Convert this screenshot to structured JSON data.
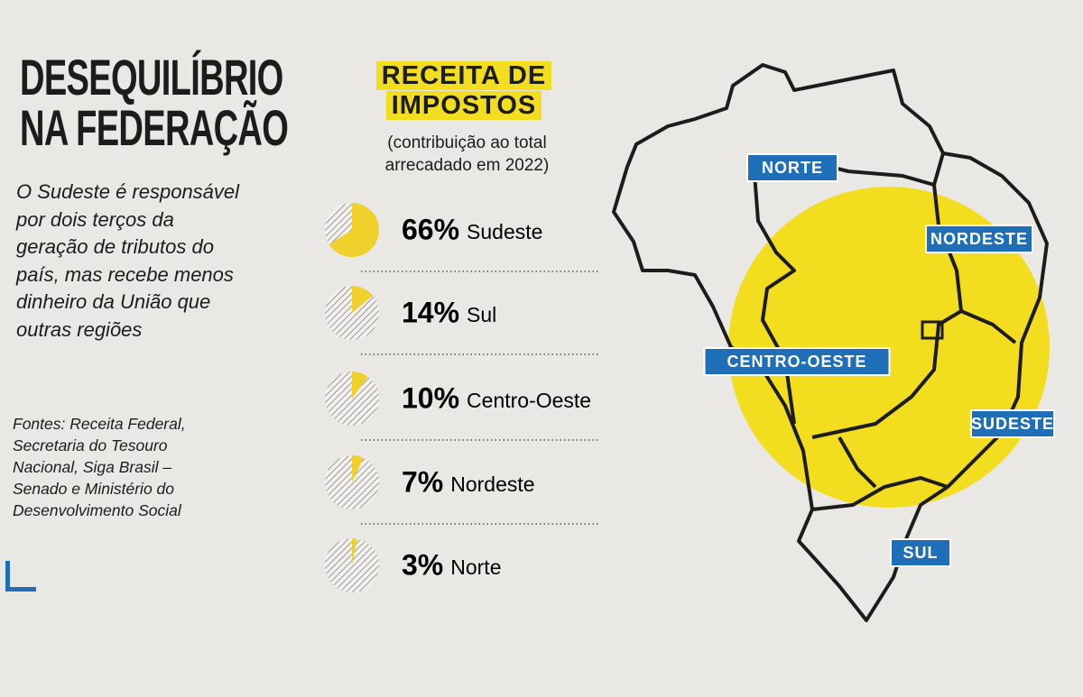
{
  "article": {
    "headline": "DESEQUILÍBRIO NA FEDERAÇÃO",
    "body": "O Sudeste é responsável por dois terços da geração de tributos do país, mas recebe menos dinheiro da União que outras regiões",
    "sources": "Fontes: Receita Federal, Secretaria do Tesouro Nacional, Siga Brasil – Senado e Ministério do Desenvolvimento Social"
  },
  "chart_data": {
    "type": "pie",
    "title": "RECEITA DE IMPOSTOS",
    "subtitle": "(contribuição ao total arrecadado em 2022)",
    "categories": [
      "Sudeste",
      "Sul",
      "Centro-Oeste",
      "Nordeste",
      "Norte"
    ],
    "values": [
      66,
      14,
      10,
      7,
      3
    ],
    "value_labels": [
      "66%",
      "14%",
      "10%",
      "7%",
      "3%"
    ],
    "color": "#f0d12c"
  },
  "map": {
    "regions": [
      "NORTE",
      "NORDESTE",
      "CENTRO-OESTE",
      "SUDESTE",
      "SUL"
    ]
  }
}
